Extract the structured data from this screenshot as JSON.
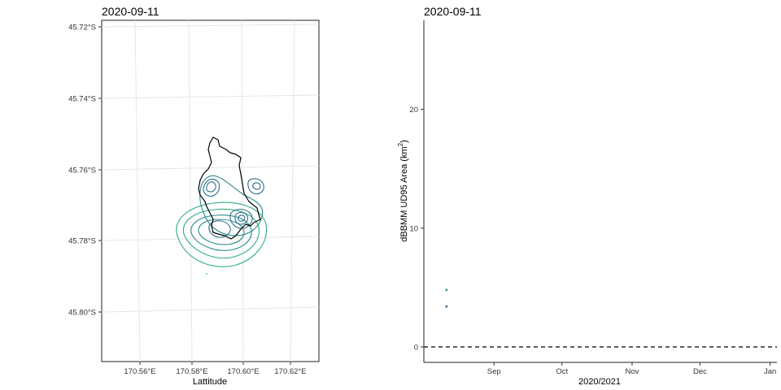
{
  "chart_data": [
    {
      "type": "map",
      "title": "2020-09-11",
      "xlabel": "Lattitude",
      "x_tick_labels": [
        "170.56°E",
        "170.58°E",
        "170.60°E",
        "170.62°E"
      ],
      "y_tick_labels": [
        "45.72°S",
        "45.74°S",
        "45.76°S",
        "45.78°S",
        "45.80°S"
      ],
      "grid": true,
      "colors": {
        "outline": "#000000",
        "contour_dark": "#2e6e8c",
        "contour_mid": "#2a8d8b",
        "contour_light": "#2fae82"
      },
      "contour_color_series": [
        "contour_dark",
        "contour_mid",
        "contour_light"
      ]
    },
    {
      "type": "scatter",
      "title": "2020-09-11",
      "xlabel": "2020/2021",
      "ylabel_main": "dBBMM UD95 Area",
      "ylabel_unit": "(km",
      "ylabel_sup": "2",
      "ylabel_close": ")",
      "ylim": [
        -1.3,
        27.5
      ],
      "y_ticks": [
        0,
        10,
        20
      ],
      "y_tick_labels": [
        "0",
        "10",
        "20"
      ],
      "x_tick_labels": [
        "Sep",
        "Oct",
        "Nov",
        "Dec",
        "Jan"
      ],
      "x_tick_days": [
        31,
        61,
        92,
        122,
        153
      ],
      "xlim_days": [
        0,
        156
      ],
      "x_origin_label": "2020-08-01",
      "reference_line": {
        "y": 0,
        "style": "dashed"
      },
      "series": [
        {
          "color": "#2aa283",
          "points": [
            {
              "x_day": 10,
              "y": 4.8
            }
          ]
        },
        {
          "color": "#3a6b8a",
          "points": [
            {
              "x_day": 10,
              "y": 3.4
            }
          ]
        }
      ]
    }
  ]
}
